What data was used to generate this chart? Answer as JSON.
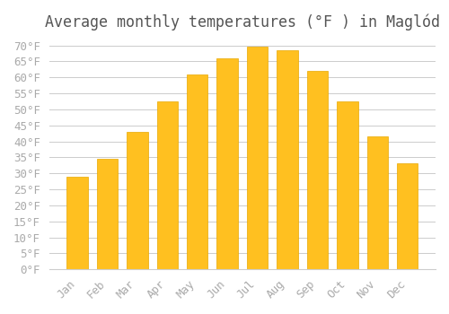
{
  "title": "Average monthly temperatures (°F ) in Maglód",
  "months": [
    "Jan",
    "Feb",
    "Mar",
    "Apr",
    "May",
    "Jun",
    "Jul",
    "Aug",
    "Sep",
    "Oct",
    "Nov",
    "Dec"
  ],
  "values": [
    29,
    34.5,
    43,
    52.5,
    61,
    66,
    69.5,
    68.5,
    62,
    52.5,
    41.5,
    33
  ],
  "bar_color": "#FFC020",
  "bar_edge_color": "#E8A800",
  "ylim": [
    0,
    72
  ],
  "yticks": [
    0,
    5,
    10,
    15,
    20,
    25,
    30,
    35,
    40,
    45,
    50,
    55,
    60,
    65,
    70
  ],
  "background_color": "#ffffff",
  "grid_color": "#cccccc",
  "title_fontsize": 12,
  "tick_fontsize": 9,
  "font_family": "monospace"
}
